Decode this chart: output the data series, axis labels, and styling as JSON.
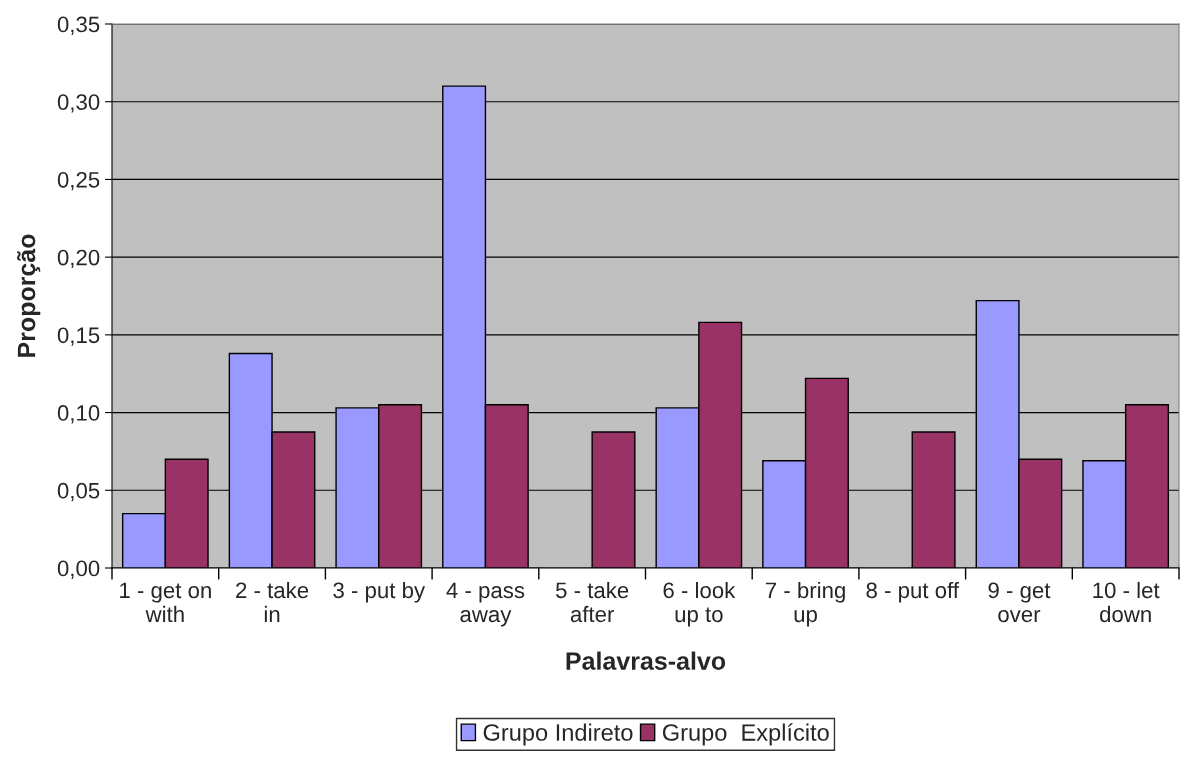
{
  "chart_data": {
    "type": "bar",
    "xlabel": "Palavras-alvo",
    "ylabel": "Proporção",
    "categories": [
      "1 - get on\nwith",
      "2 - take\nin",
      "3 - put by",
      "4 - pass\naway",
      "5 - take\nafter",
      "6 - look\nup to",
      "7 - bring\nup",
      "8 - put off",
      "9 - get\nover",
      "10 - let\ndown"
    ],
    "series": [
      {
        "name": "Grupo Indireto",
        "color": "#9999ff",
        "values": [
          0.035,
          0.138,
          0.103,
          0.31,
          null,
          0.103,
          0.069,
          null,
          0.172,
          0.069
        ]
      },
      {
        "name": "Grupo  Explícito",
        "color": "#993366",
        "values": [
          0.07,
          0.0875,
          0.105,
          0.105,
          0.0875,
          0.158,
          0.122,
          0.0875,
          0.07,
          0.105
        ]
      }
    ],
    "ylim": [
      0,
      0.35
    ],
    "yticks": [
      {
        "value": 0,
        "label": "0,00"
      },
      {
        "value": 0.05,
        "label": "0,05"
      },
      {
        "value": 0.1,
        "label": "0,10"
      },
      {
        "value": 0.15,
        "label": "0,15"
      },
      {
        "value": 0.2,
        "label": "0,20"
      },
      {
        "value": 0.25,
        "label": "0,25"
      },
      {
        "value": 0.3,
        "label": "0,30"
      },
      {
        "value": 0.35,
        "label": "0,35"
      }
    ],
    "grid": "y",
    "legend": "bottom"
  }
}
